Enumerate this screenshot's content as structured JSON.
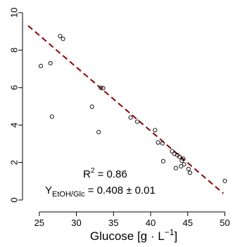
{
  "chart_data": {
    "type": "scatter",
    "xlabel": {
      "prefix": "Glucose [g · L",
      "sup": "−1",
      "suffix": "]"
    },
    "ylabel": "",
    "xlim": [
      23.5,
      51
    ],
    "ylim": [
      0,
      10
    ],
    "xticks": [
      25,
      30,
      35,
      40,
      45,
      50
    ],
    "yticks": [
      0,
      2,
      4,
      6,
      8,
      10
    ],
    "grid": false,
    "series": [
      {
        "x": [
          25.2,
          26.5,
          26.7,
          27.8,
          28.2,
          32.1,
          33.0,
          33.3,
          33.6,
          37.3,
          38.2,
          40.6,
          41.0,
          41.6,
          41.7,
          42.9,
          43.2,
          43.4,
          43.6,
          43.9,
          44.1,
          44.2,
          44.4,
          44.5,
          45.1,
          45.3,
          50.0
        ],
        "y": [
          7.15,
          7.3,
          4.45,
          8.75,
          8.6,
          4.98,
          3.62,
          5.98,
          5.97,
          4.4,
          4.18,
          3.73,
          3.07,
          3.02,
          2.07,
          2.6,
          2.47,
          1.7,
          2.4,
          2.3,
          1.8,
          2.1,
          2.2,
          1.9,
          1.65,
          1.45,
          1.02
        ],
        "marker": "open-circle",
        "color": "#000000"
      }
    ],
    "fit_line": {
      "x": [
        23.5,
        49.8
      ],
      "y": [
        9.3,
        0.35
      ],
      "color": "#8b0000",
      "style": "dashed"
    },
    "annotations": {
      "r2": {
        "base": "R",
        "sup": "2",
        "rest": " = 0.86"
      },
      "yield": {
        "base": "Y",
        "sub": "EtOH/Glc",
        "rest": " = 0.408 ± 0.01"
      }
    }
  }
}
